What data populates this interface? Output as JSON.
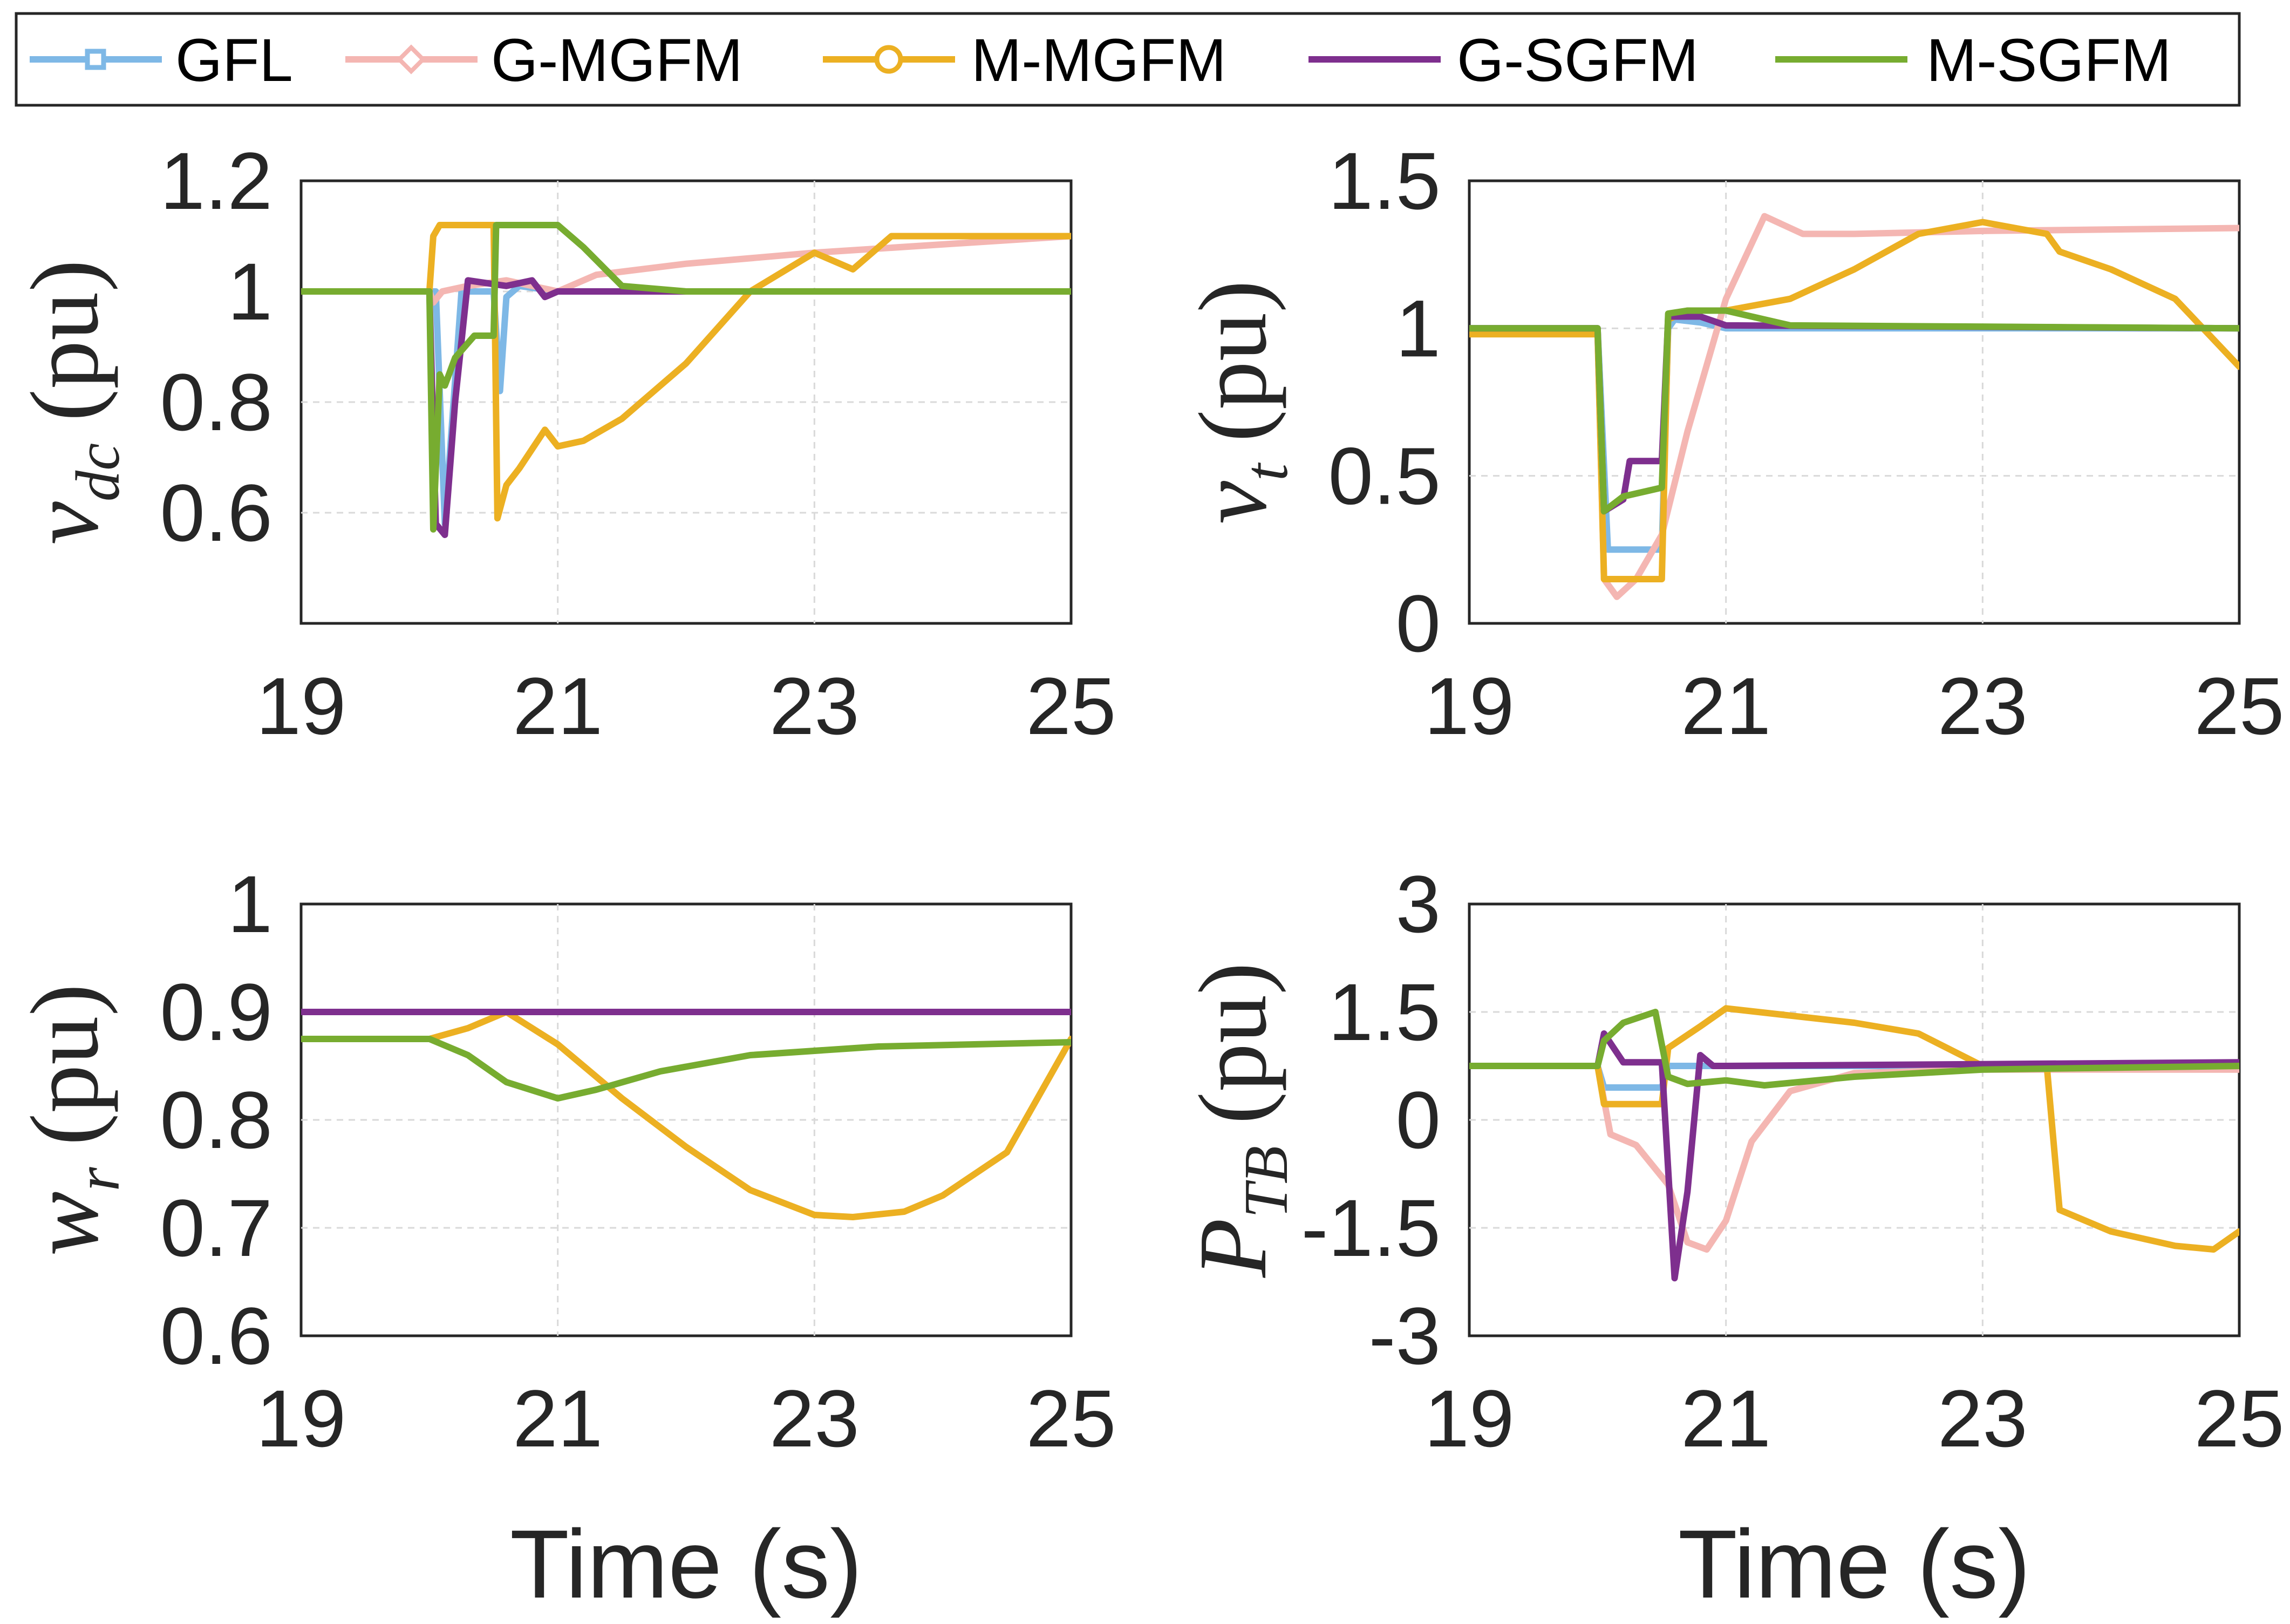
{
  "chart_data": [
    {
      "id": "vdc",
      "type": "line",
      "ylabel": {
        "var": "v",
        "sub": "dc",
        "unit": "(pu)"
      },
      "xlabel": "",
      "xlim": [
        19,
        25
      ],
      "ylim": [
        0.4,
        1.2
      ],
      "xticks": [
        19,
        21,
        23,
        25
      ],
      "yticks": [
        0.6,
        0.8,
        1,
        1.2
      ],
      "series": [
        {
          "name": "GFL",
          "x": [
            19,
            20.05,
            20.12,
            20.25,
            20.5,
            20.55,
            20.6,
            20.7,
            21,
            22,
            25
          ],
          "y": [
            1,
            1,
            0.58,
            1.0,
            1.0,
            0.82,
            0.99,
            1.01,
            1.0,
            1.0,
            1.0
          ]
        },
        {
          "name": "G-MGFM",
          "x": [
            19,
            20,
            20.03,
            20.1,
            20.3,
            20.6,
            21,
            21.3,
            22,
            23,
            25
          ],
          "y": [
            1,
            1,
            0.98,
            1.0,
            1.01,
            1.02,
            1.0,
            1.03,
            1.05,
            1.07,
            1.1
          ]
        },
        {
          "name": "M-MGFM",
          "x": [
            19,
            20,
            20.03,
            20.08,
            20.5,
            20.53,
            20.6,
            20.7,
            20.9,
            21,
            21.2,
            21.5,
            22,
            22.5,
            23,
            23.3,
            23.6,
            25
          ],
          "y": [
            1,
            1,
            1.1,
            1.12,
            1.12,
            0.59,
            0.65,
            0.68,
            0.75,
            0.72,
            0.73,
            0.77,
            0.87,
            1.0,
            1.07,
            1.04,
            1.1,
            1.1
          ]
        },
        {
          "name": "G-SGFM",
          "x": [
            19,
            20,
            20.05,
            20.12,
            20.2,
            20.3,
            20.6,
            20.8,
            20.9,
            21,
            25
          ],
          "y": [
            1,
            1,
            0.58,
            0.56,
            0.8,
            1.02,
            1.01,
            1.02,
            0.99,
            1.0,
            1.0
          ]
        },
        {
          "name": "M-SGFM",
          "x": [
            19,
            20,
            20.03,
            20.08,
            20.12,
            20.2,
            20.35,
            20.5,
            20.52,
            20.6,
            21,
            21.2,
            21.5,
            22,
            25
          ],
          "y": [
            1,
            1,
            0.57,
            0.85,
            0.83,
            0.88,
            0.92,
            0.92,
            1.12,
            1.12,
            1.12,
            1.08,
            1.01,
            1.0,
            1.0
          ]
        }
      ]
    },
    {
      "id": "vt",
      "type": "line",
      "ylabel": {
        "var": "v",
        "sub": "t",
        "unit": "(pu)"
      },
      "xlabel": "",
      "xlim": [
        19,
        25
      ],
      "ylim": [
        0,
        1.5
      ],
      "xticks": [
        19,
        21,
        23,
        25
      ],
      "yticks": [
        0,
        0.5,
        1,
        1.5
      ],
      "series": [
        {
          "name": "GFL",
          "x": [
            19,
            20,
            20.08,
            20.5,
            20.55,
            20.6,
            20.8,
            21,
            25
          ],
          "y": [
            1,
            1,
            0.25,
            0.25,
            1.0,
            1.03,
            1.02,
            1.0,
            1.0
          ]
        },
        {
          "name": "G-MGFM",
          "x": [
            19,
            20,
            20.05,
            20.15,
            20.3,
            20.5,
            20.7,
            21,
            21.3,
            21.6,
            22,
            23,
            25
          ],
          "y": [
            0.99,
            0.99,
            0.15,
            0.09,
            0.15,
            0.3,
            0.65,
            1.1,
            1.38,
            1.32,
            1.32,
            1.33,
            1.34
          ]
        },
        {
          "name": "M-MGFM",
          "x": [
            19,
            20,
            20.05,
            20.5,
            20.55,
            20.7,
            21,
            21.5,
            22,
            22.5,
            23,
            23.5,
            23.6,
            24,
            24.5,
            25
          ],
          "y": [
            0.98,
            0.98,
            0.15,
            0.15,
            1.03,
            1.06,
            1.06,
            1.1,
            1.2,
            1.32,
            1.36,
            1.32,
            1.26,
            1.2,
            1.1,
            0.87
          ]
        },
        {
          "name": "G-SGFM",
          "x": [
            19,
            20,
            20.05,
            20.2,
            20.25,
            20.5,
            20.55,
            20.8,
            21,
            25
          ],
          "y": [
            1,
            1,
            0.38,
            0.42,
            0.55,
            0.55,
            1.04,
            1.04,
            1.01,
            1.0
          ]
        },
        {
          "name": "M-SGFM",
          "x": [
            19,
            20,
            20.05,
            20.2,
            20.5,
            20.55,
            20.7,
            21,
            21.5,
            25
          ],
          "y": [
            1,
            1,
            0.38,
            0.43,
            0.46,
            1.05,
            1.06,
            1.06,
            1.01,
            1.0
          ]
        }
      ]
    },
    {
      "id": "wr",
      "type": "line",
      "ylabel": {
        "var": "w",
        "sub": "r",
        "unit": "(pu)"
      },
      "xlabel": "Time (s)",
      "xlim": [
        19,
        25
      ],
      "ylim": [
        0.6,
        1
      ],
      "xticks": [
        19,
        21,
        23,
        25
      ],
      "yticks": [
        0.6,
        0.7,
        0.8,
        0.9,
        1
      ],
      "series": [
        {
          "name": "GFL",
          "x": [
            19,
            25
          ],
          "y": [
            0.9,
            0.9
          ]
        },
        {
          "name": "G-MGFM",
          "x": [
            19,
            25
          ],
          "y": [
            0.9,
            0.9
          ]
        },
        {
          "name": "M-MGFM",
          "x": [
            19,
            20,
            20.3,
            20.6,
            21,
            21.5,
            22,
            22.5,
            23,
            23.3,
            23.7,
            24,
            24.5,
            25
          ],
          "y": [
            0.875,
            0.875,
            0.885,
            0.9,
            0.87,
            0.82,
            0.775,
            0.735,
            0.712,
            0.71,
            0.715,
            0.73,
            0.77,
            0.875
          ]
        },
        {
          "name": "G-SGFM",
          "x": [
            19,
            25
          ],
          "y": [
            0.9,
            0.9
          ]
        },
        {
          "name": "M-SGFM",
          "x": [
            19,
            20,
            20.3,
            20.6,
            21,
            21.3,
            21.8,
            22.5,
            23.5,
            25
          ],
          "y": [
            0.875,
            0.875,
            0.86,
            0.835,
            0.82,
            0.828,
            0.845,
            0.86,
            0.868,
            0.872
          ]
        }
      ]
    },
    {
      "id": "ptb",
      "type": "line",
      "ylabel": {
        "var": "P",
        "sub": "TB",
        "unit": "(pu)"
      },
      "xlabel": "Time (s)",
      "xlim": [
        19,
        25
      ],
      "ylim": [
        -3,
        3
      ],
      "xticks": [
        19,
        21,
        23,
        25
      ],
      "yticks": [
        -3,
        -1.5,
        0,
        1.5,
        3
      ],
      "series": [
        {
          "name": "GFL",
          "x": [
            19,
            20,
            20.05,
            20.5,
            20.55,
            21,
            25
          ],
          "y": [
            0.75,
            0.75,
            0.45,
            0.45,
            0.75,
            0.75,
            0.75
          ]
        },
        {
          "name": "G-MGFM",
          "x": [
            19,
            20,
            20.1,
            20.3,
            20.55,
            20.7,
            20.85,
            21,
            21.2,
            21.5,
            22,
            23,
            25
          ],
          "y": [
            0.75,
            0.75,
            -0.2,
            -0.35,
            -0.9,
            -1.7,
            -1.8,
            -1.4,
            -0.3,
            0.4,
            0.65,
            0.7,
            0.7
          ]
        },
        {
          "name": "M-MGFM",
          "x": [
            19,
            20,
            20.05,
            20.5,
            20.55,
            20.8,
            21,
            21.5,
            22,
            22.5,
            23,
            23.5,
            23.6,
            24,
            24.5,
            24.8,
            25
          ],
          "y": [
            0.75,
            0.75,
            0.22,
            0.22,
            1.0,
            1.3,
            1.55,
            1.45,
            1.35,
            1.2,
            0.75,
            0.75,
            -1.25,
            -1.55,
            -1.75,
            -1.8,
            -1.55
          ]
        },
        {
          "name": "G-SGFM",
          "x": [
            19,
            20,
            20.05,
            20.2,
            20.5,
            20.6,
            20.7,
            20.8,
            20.9,
            21,
            25
          ],
          "y": [
            0.75,
            0.75,
            1.2,
            0.8,
            0.8,
            -2.2,
            -1.0,
            0.9,
            0.75,
            0.75,
            0.8
          ]
        },
        {
          "name": "M-SGFM",
          "x": [
            19,
            20,
            20.05,
            20.2,
            20.45,
            20.55,
            20.7,
            21,
            21.3,
            22,
            23,
            25
          ],
          "y": [
            0.75,
            0.75,
            1.1,
            1.35,
            1.5,
            0.6,
            0.5,
            0.55,
            0.48,
            0.6,
            0.7,
            0.75
          ]
        }
      ]
    }
  ],
  "legend": [
    {
      "name": "GFL",
      "label": "GFL",
      "color": "#7EB8E6",
      "marker": "square"
    },
    {
      "name": "G-MGFM",
      "label": "G-MGFM",
      "color": "#F4B6B2",
      "marker": "diamond"
    },
    {
      "name": "M-MGFM",
      "label": "M-MGFM",
      "color": "#ECB022",
      "marker": "circle"
    },
    {
      "name": "G-SGFM",
      "label": "G-SGFM",
      "color": "#7E2F8E",
      "marker": "none"
    },
    {
      "name": "M-SGFM",
      "label": "M-SGFM",
      "color": "#77AC30",
      "marker": "none"
    }
  ]
}
